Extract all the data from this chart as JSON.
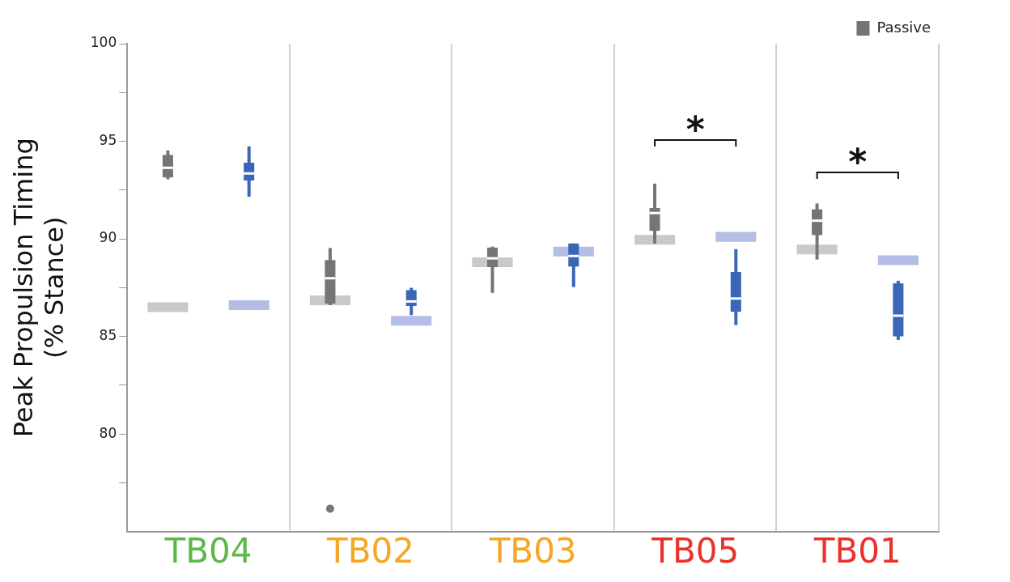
{
  "chart_data": {
    "type": "box",
    "ylabel": "Peak Propulsion Timing\n(% Stance)",
    "categories": [
      "TB04",
      "TB02",
      "TB03",
      "TB05",
      "TB01"
    ],
    "ylim": [
      75,
      100
    ],
    "yticks": [
      {
        "value": 77.5,
        "label": null
      },
      80,
      {
        "value": 82.5,
        "label": null
      },
      85,
      {
        "value": 87.5,
        "label": null
      },
      90,
      {
        "value": 92.5,
        "label": null
      },
      95,
      {
        "value": 97.5,
        "label": null
      },
      100
    ],
    "grid": "x",
    "legend": "top right",
    "series": [
      {
        "name": "Passive",
        "color": "#757575",
        "boxes": [
          {
            "low": 93.05,
            "q1": 93.15,
            "median": 93.64,
            "q3": 94.3,
            "high": 94.53
          },
          {
            "low": 86.6,
            "q1": 86.68,
            "median": 87.98,
            "q3": 88.91,
            "high": 89.53,
            "outliers": [
              76.17
            ]
          },
          {
            "low": 87.23,
            "q1": 88.55,
            "median": 89.0,
            "q3": 89.55,
            "high": 89.6
          },
          {
            "low": 89.76,
            "q1": 90.41,
            "median": 91.32,
            "q3": 91.58,
            "high": 92.83
          },
          {
            "low": 88.94,
            "q1": 90.19,
            "median": 90.93,
            "q3": 91.51,
            "high": 91.81
          }
        ]
      },
      {
        "color": "#3a66b8",
        "boxes": [
          {
            "low": 92.16,
            "q1": 92.99,
            "median": 93.35,
            "q3": 93.9,
            "high": 94.74
          },
          {
            "low": 86.09,
            "q1": 86.56,
            "median": 86.79,
            "q3": 87.37,
            "high": 87.49
          },
          {
            "low": 87.53,
            "q1": 88.58,
            "median": 89.12,
            "q3": 89.76,
            "high": 89.76
          },
          {
            "low": 85.58,
            "q1": 86.26,
            "median": 86.94,
            "q3": 88.3,
            "high": 89.47
          },
          {
            "low": 84.82,
            "q1": 85.0,
            "median": 86.06,
            "q3": 87.72,
            "high": 87.85
          }
        ]
      },
      {
        "type": "bar",
        "color": "#c9c9c9",
        "base": [
          86.25,
          86.6,
          88.55,
          89.7,
          89.2
        ],
        "values": [
          0.5,
          0.5,
          0.5,
          0.5,
          0.5
        ]
      },
      {
        "type": "bar",
        "color": "#b3bde6",
        "base": [
          86.35,
          85.55,
          89.1,
          89.85,
          88.65
        ],
        "values": [
          0.5,
          0.5,
          0.5,
          0.5,
          0.5
        ]
      }
    ],
    "annotations": [
      "*",
      "*"
    ]
  }
}
